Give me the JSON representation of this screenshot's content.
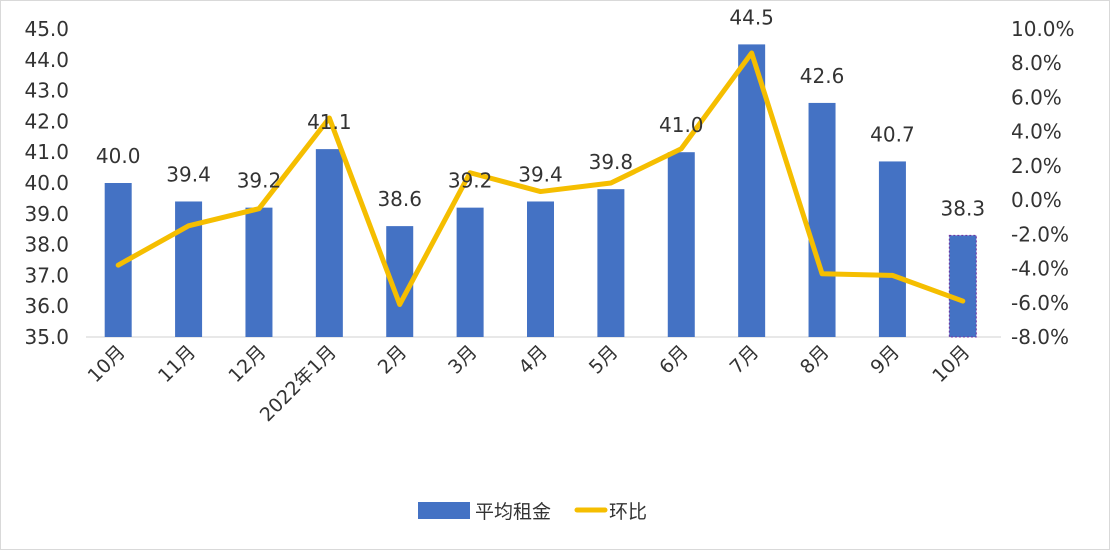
{
  "chart_data": {
    "type": "bar+line",
    "title": "",
    "categories": [
      "10月",
      "11月",
      "12月",
      "2022年1月",
      "2月",
      "3月",
      "4月",
      "5月",
      "6月",
      "7月",
      "8月",
      "9月",
      "10月"
    ],
    "series": [
      {
        "name": "平均租金",
        "type": "bar",
        "axis": "left",
        "color": "#4472C4",
        "values": [
          40.0,
          39.4,
          39.2,
          41.1,
          38.6,
          39.2,
          39.4,
          39.8,
          41.0,
          44.5,
          42.6,
          40.7,
          38.3
        ],
        "labels": [
          "40.0",
          "39.4",
          "39.2",
          "41.1",
          "38.6",
          "39.2",
          "39.4",
          "39.8",
          "41.0",
          "44.5",
          "42.6",
          "40.7",
          "38.3"
        ]
      },
      {
        "name": "环比",
        "type": "line",
        "axis": "right",
        "color": "#F5BE00",
        "values": [
          -3.8,
          -1.5,
          -0.5,
          4.8,
          -6.1,
          1.6,
          0.5,
          1.0,
          3.0,
          8.6,
          -4.3,
          -4.4,
          -5.9
        ]
      }
    ],
    "left_axis": {
      "min": 35.0,
      "max": 45.0,
      "step": 1.0,
      "ticks": [
        "45.0",
        "44.0",
        "43.0",
        "42.0",
        "41.0",
        "40.0",
        "39.0",
        "38.0",
        "37.0",
        "36.0",
        "35.0"
      ]
    },
    "right_axis": {
      "min": -8.0,
      "max": 10.0,
      "step": 2.0,
      "ticks": [
        "10.0%",
        "8.0%",
        "6.0%",
        "4.0%",
        "2.0%",
        "0.0%",
        "-2.0%",
        "-4.0%",
        "-6.0%",
        "-8.0%"
      ]
    },
    "xlabel": "",
    "ylabel": "",
    "grid": false,
    "legend": {
      "position": "bottom",
      "items": [
        "平均租金",
        "环比"
      ]
    }
  }
}
